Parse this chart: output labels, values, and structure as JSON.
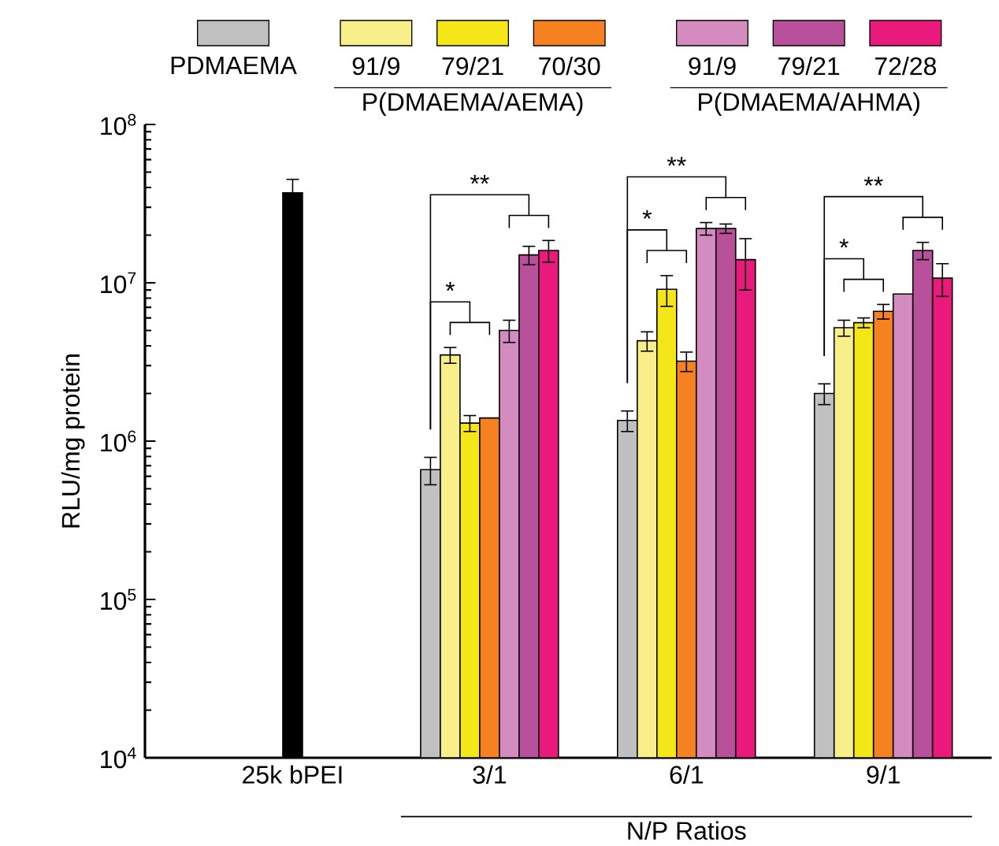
{
  "chart_data": {
    "type": "bar",
    "categories": [
      "25k bPEI",
      "3/1",
      "6/1",
      "9/1"
    ],
    "xlabel": "N/P Ratios",
    "ylabel": "RLU/mg protein",
    "log": "y",
    "ylim": [
      10000,
      100000000
    ],
    "yticks": [
      {
        "value": 10000,
        "label": "10$^{4}$"
      },
      {
        "value": 100000,
        "label": "10$^{5}$"
      },
      {
        "value": 1000000,
        "label": "10$^{6}$"
      },
      {
        "value": 10000000,
        "label": "10$^{7}$"
      },
      {
        "value": 100000000,
        "label": "10$^{8}$"
      }
    ],
    "grid": false,
    "legend": "top",
    "series": [
      {
        "color": "#000000",
        "values": [
          37000000,
          null,
          null,
          null
        ],
        "errors": [
          8000000,
          null,
          null,
          null
        ]
      },
      {
        "name": "PDMAEMA",
        "color": "#c0c0c0",
        "values": [
          null,
          660000,
          1350000,
          2000000
        ],
        "errors": [
          null,
          130000,
          200000,
          300000
        ]
      },
      {
        "name": "91/9",
        "color": "#f9ef8a",
        "values": [
          null,
          3500000,
          4300000,
          5200000
        ],
        "errors": [
          null,
          400000,
          600000,
          600000
        ]
      },
      {
        "name": "79/21",
        "color": "#f5e617",
        "values": [
          null,
          1300000,
          9100000,
          5600000
        ],
        "errors": [
          null,
          150000,
          2000000,
          400000
        ]
      },
      {
        "name": "70/30",
        "color": "#f68121",
        "values": [
          null,
          1400000,
          3200000,
          6600000
        ],
        "errors": [
          null,
          null,
          450000,
          700000
        ]
      },
      {
        "name": "91/9",
        "color": "#d48cc0",
        "values": [
          null,
          5000000,
          22000000,
          8500000
        ],
        "errors": [
          null,
          800000,
          2000000,
          null
        ]
      },
      {
        "name": "79/21",
        "color": "#b8509c",
        "values": [
          null,
          15000000,
          22000000,
          16000000
        ],
        "errors": [
          null,
          2000000,
          1500000,
          2000000
        ]
      },
      {
        "name": "72/28",
        "color": "#ea1a7d",
        "values": [
          null,
          16000000,
          14000000,
          10700000
        ],
        "errors": [
          null,
          2500000,
          5000000,
          2500000
        ]
      }
    ],
    "annotations": [
      "P(DMAEMA/AEMA)",
      "P(DMAEMA/AHMA)",
      "*",
      "**",
      "*",
      "**",
      "*",
      "**"
    ]
  }
}
